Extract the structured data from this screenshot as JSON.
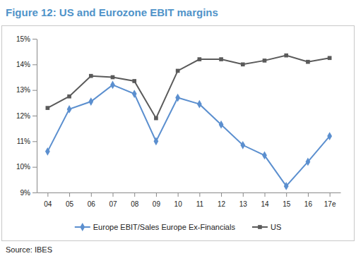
{
  "chart_data": {
    "type": "line",
    "title": "Figure 12: US and Eurozone EBIT margins",
    "source": "Source: IBES",
    "categories": [
      "04",
      "05",
      "06",
      "07",
      "08",
      "09",
      "10",
      "11",
      "12",
      "13",
      "14",
      "15",
      "16",
      "17e"
    ],
    "series": [
      {
        "name": "Europe EBIT/Sales Europe Ex-Financials",
        "color": "#5b8fcf",
        "marker": "diamond",
        "line_style": "solid",
        "values": [
          10.6,
          12.25,
          12.55,
          13.2,
          12.85,
          11.0,
          12.7,
          12.45,
          11.65,
          10.85,
          10.45,
          9.25,
          10.2,
          11.2
        ]
      },
      {
        "name": "US",
        "color": "#5a5a5a",
        "marker": "square",
        "line_style": "solid",
        "values": [
          12.3,
          12.75,
          13.55,
          13.5,
          13.35,
          11.9,
          13.75,
          14.2,
          14.2,
          14.0,
          14.15,
          14.35,
          14.1,
          14.25
        ]
      }
    ],
    "ylim": [
      9,
      15
    ],
    "yticks": [
      {
        "value": 9,
        "label": "9%"
      },
      {
        "value": 10,
        "label": "10%"
      },
      {
        "value": 11,
        "label": "11%"
      },
      {
        "value": 12,
        "label": "12%"
      },
      {
        "value": 13,
        "label": "13%"
      },
      {
        "value": 14,
        "label": "14%"
      },
      {
        "value": 15,
        "label": "15%"
      }
    ],
    "grid": false,
    "legend": "bottom"
  }
}
